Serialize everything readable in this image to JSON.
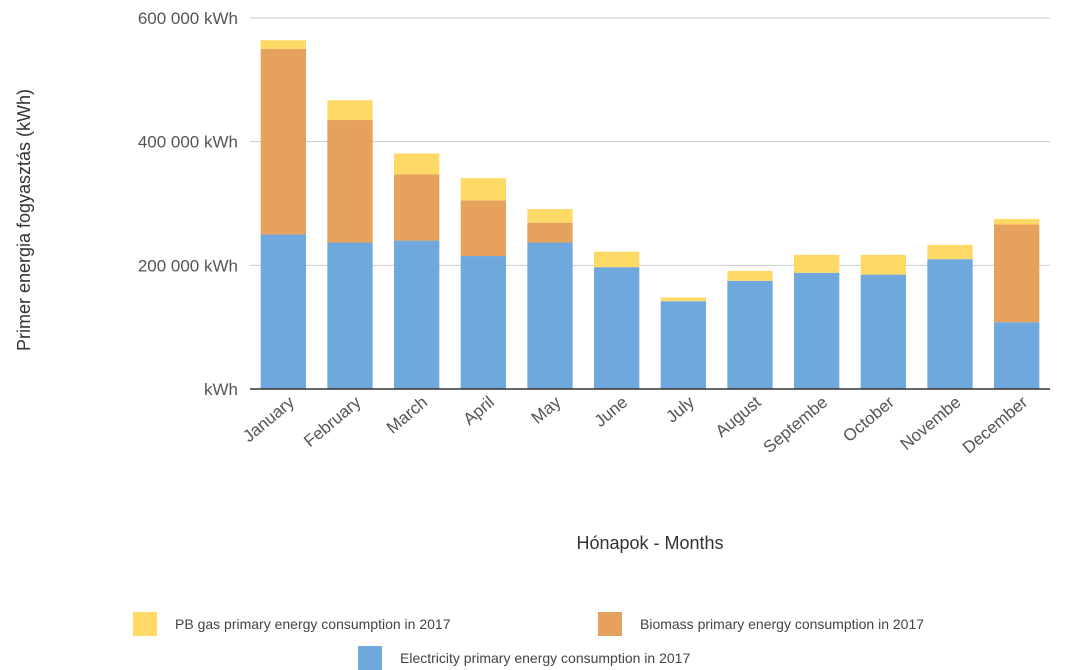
{
  "chart_data": {
    "type": "bar",
    "stacked": true,
    "categories": [
      "January",
      "February",
      "March",
      "April",
      "May",
      "June",
      "July",
      "August",
      "Septembe",
      "October",
      "Novembe",
      "December"
    ],
    "series": [
      {
        "name": "Electricity primary energy consumption in 2017",
        "color": "#6fa8dc",
        "values": [
          250000,
          237000,
          240000,
          215000,
          237000,
          197000,
          142000,
          175000,
          188000,
          185000,
          210000,
          108000
        ]
      },
      {
        "name": "Biomass primary energy consumption in 2017",
        "color": "#e6a15c",
        "values": [
          300000,
          198000,
          107000,
          90000,
          32000,
          0,
          0,
          0,
          0,
          0,
          0,
          158000
        ]
      },
      {
        "name": "PB gas primary energy consumption in 2017",
        "color": "#ffd966",
        "values": [
          14000,
          32000,
          34000,
          36000,
          22000,
          25000,
          6000,
          16000,
          29000,
          32000,
          23000,
          9000
        ]
      }
    ],
    "ylim": [
      0,
      600000
    ],
    "yticks": [
      0,
      200000,
      400000,
      600000
    ],
    "ytick_labels": [
      "kWh",
      "200 000  kWh",
      "400 000  kWh",
      "600 000  kWh"
    ],
    "xlabel": "Hónapok - Months",
    "ylabel": "Primer energia fogyasztás (kWh)",
    "grid": true,
    "legend_position": "bottom",
    "legend_order": [
      2,
      1,
      0
    ]
  }
}
